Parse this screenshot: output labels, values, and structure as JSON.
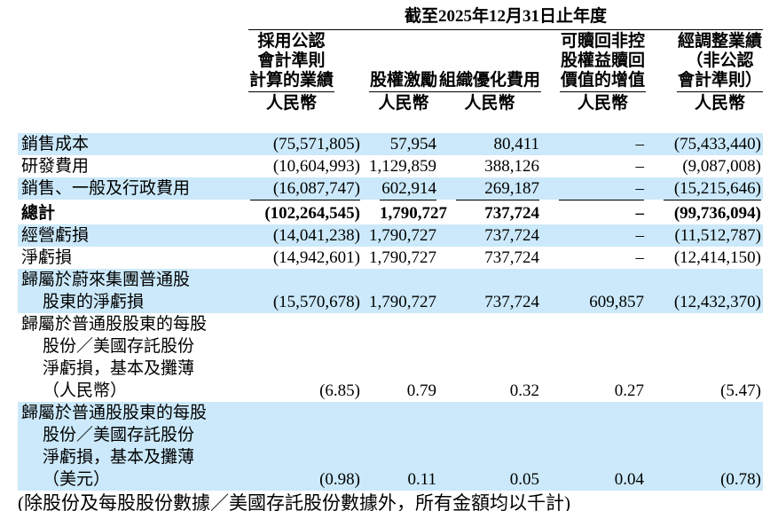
{
  "title": "截至2025年12月31日止年度",
  "footnote": "(除股份及每股股份數據／美國存託股份數據外，所有金額均以千計)",
  "colors": {
    "row_highlight": "#cbe9fa",
    "text": "#000000",
    "rule": "#000000",
    "background": "#ffffff"
  },
  "table": {
    "columns": [
      {
        "header_lines": [
          "採用公認",
          "會計準則",
          "計算的業績"
        ],
        "unit": "人民幣"
      },
      {
        "header_lines": [
          "股權激勵"
        ],
        "unit": "人民幣"
      },
      {
        "header_lines": [
          "組織優化費用"
        ],
        "unit": "人民幣"
      },
      {
        "header_lines": [
          "可贖回非控",
          "股權益贖回",
          "價值的增值"
        ],
        "unit": "人民幣"
      },
      {
        "header_lines": [
          "經調整業績",
          "（非公認",
          "會計準則）"
        ],
        "unit": "人民幣"
      }
    ],
    "rows": [
      {
        "label_lines": [
          "銷售成本"
        ],
        "values": [
          "(75,571,805)",
          "57,954",
          "80,411",
          "–",
          "(75,433,440)"
        ],
        "highlight": true,
        "bold": false,
        "topline": false
      },
      {
        "label_lines": [
          "研發費用"
        ],
        "values": [
          "(10,604,993)",
          "1,129,859",
          "388,126",
          "–",
          "(9,087,008)"
        ],
        "highlight": false,
        "bold": false,
        "topline": false
      },
      {
        "label_lines": [
          "銷售、一般及行政費用"
        ],
        "values": [
          "(16,087,747)",
          "602,914",
          "269,187",
          "–",
          "(15,215,646)"
        ],
        "highlight": true,
        "bold": false,
        "topline": false
      },
      {
        "label_lines": [
          "總計"
        ],
        "values": [
          "(102,264,545)",
          "1,790,727",
          "737,724",
          "–",
          "(99,736,094)"
        ],
        "highlight": false,
        "bold": true,
        "topline": true
      },
      {
        "label_lines": [
          "經營虧損"
        ],
        "values": [
          "(14,041,238)",
          "1,790,727",
          "737,724",
          "–",
          "(11,512,787)"
        ],
        "highlight": true,
        "bold": false,
        "topline": false
      },
      {
        "label_lines": [
          "淨虧損"
        ],
        "values": [
          "(14,942,601)",
          "1,790,727",
          "737,724",
          "–",
          "(12,414,150)"
        ],
        "highlight": false,
        "bold": false,
        "topline": false
      },
      {
        "label_lines": [
          "歸屬於蔚來集團普通股",
          "股東的淨虧損"
        ],
        "values": [
          "(15,570,678)",
          "1,790,727",
          "737,724",
          "609,857",
          "(12,432,370)"
        ],
        "highlight": true,
        "bold": false,
        "topline": false
      },
      {
        "label_lines": [
          "歸屬於普通股股東的每股",
          "股份／美國存託股份",
          "淨虧損，基本及攤薄",
          "（人民幣）"
        ],
        "values": [
          "(6.85)",
          "0.79",
          "0.32",
          "0.27",
          "(5.47)"
        ],
        "highlight": false,
        "bold": false,
        "topline": false
      },
      {
        "label_lines": [
          "歸屬於普通股股東的每股",
          "股份／美國存託股份",
          "淨虧損，基本及攤薄",
          "（美元）"
        ],
        "values": [
          "(0.98)",
          "0.11",
          "0.05",
          "0.04",
          "(0.78)"
        ],
        "highlight": true,
        "bold": false,
        "topline": false
      }
    ]
  }
}
